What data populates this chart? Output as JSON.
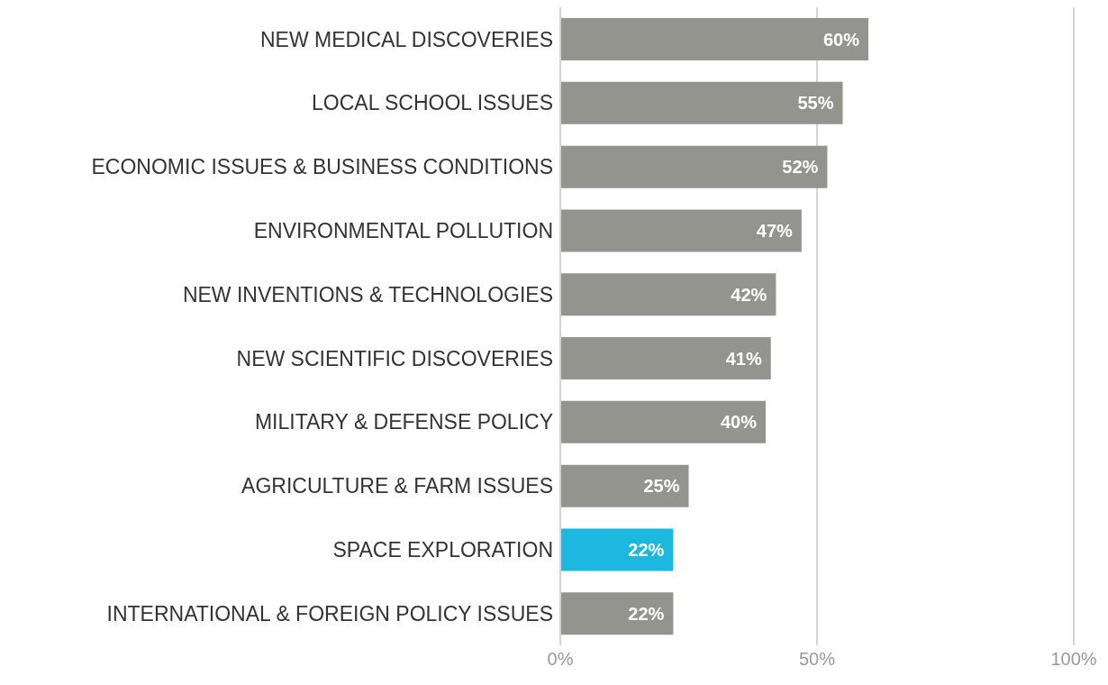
{
  "chart_data": {
    "type": "bar",
    "orientation": "horizontal",
    "categories": [
      "NEW MEDICAL DISCOVERIES",
      "LOCAL SCHOOL ISSUES",
      "ECONOMIC ISSUES & BUSINESS CONDITIONS",
      "ENVIRONMENTAL POLLUTION",
      "NEW INVENTIONS & TECHNOLOGIES",
      "NEW SCIENTIFIC DISCOVERIES",
      "MILITARY & DEFENSE POLICY",
      "AGRICULTURE & FARM ISSUES",
      "SPACE EXPLORATION",
      "INTERNATIONAL & FOREIGN POLICY ISSUES"
    ],
    "values": [
      60,
      55,
      52,
      47,
      42,
      41,
      40,
      25,
      22,
      22
    ],
    "value_labels": [
      "60%",
      "55%",
      "52%",
      "47%",
      "42%",
      "41%",
      "40%",
      "25%",
      "22%",
      "22%"
    ],
    "colors": [
      "#94948f",
      "#94948f",
      "#94948f",
      "#94948f",
      "#94948f",
      "#94948f",
      "#94948f",
      "#94948f",
      "#1cb8e0",
      "#94948f"
    ],
    "xlim": [
      0,
      100
    ],
    "xticks": [
      {
        "value": 0,
        "label": "0%"
      },
      {
        "value": 50,
        "label": "50%"
      },
      {
        "value": 100,
        "label": "100%"
      }
    ],
    "grid": "x"
  }
}
